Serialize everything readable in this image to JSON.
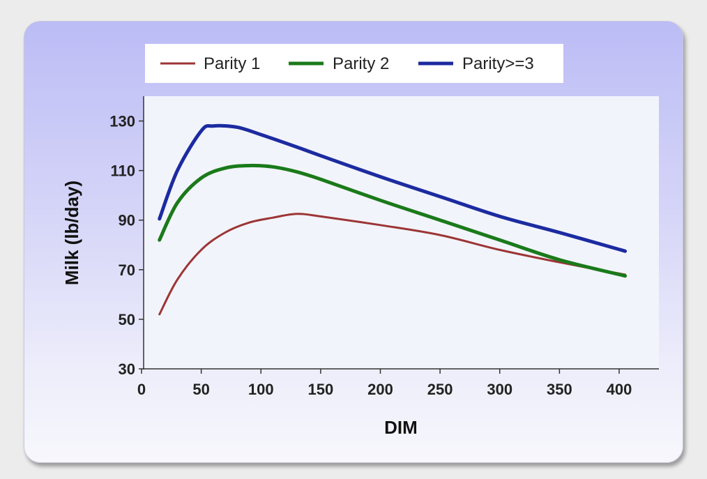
{
  "chart_data": {
    "type": "line",
    "title": "",
    "xlabel": "DIM",
    "ylabel": "Milk (lb/day)",
    "xlim": [
      0,
      435
    ],
    "ylim": [
      30,
      140
    ],
    "xticks": [
      0,
      50,
      100,
      150,
      200,
      250,
      300,
      350,
      400
    ],
    "yticks": [
      30,
      50,
      70,
      90,
      110,
      130
    ],
    "legend_position": "top",
    "grid": false,
    "series": [
      {
        "name": "Parity 1",
        "color": "#9c3535",
        "x": [
          15,
          30,
          50,
          70,
          90,
          110,
          130,
          150,
          200,
          250,
          300,
          350,
          405
        ],
        "y": [
          52,
          66,
          78,
          85,
          89,
          91,
          92.5,
          91.5,
          88,
          84,
          78,
          73,
          68
        ]
      },
      {
        "name": "Parity 2",
        "color": "#1a7a1a",
        "x": [
          15,
          30,
          50,
          70,
          90,
          110,
          130,
          150,
          200,
          250,
          300,
          350,
          405
        ],
        "y": [
          82,
          97,
          107,
          111,
          112,
          111.5,
          109.5,
          106.5,
          98,
          90,
          82,
          74,
          67.5
        ]
      },
      {
        "name": "Parity>=3",
        "color": "#1c2ba0",
        "x": [
          15,
          30,
          50,
          60,
          80,
          100,
          130,
          150,
          200,
          250,
          300,
          350,
          405
        ],
        "y": [
          90.5,
          110,
          126,
          128,
          127.5,
          124.5,
          119.5,
          116,
          107.5,
          99.5,
          91.5,
          85,
          77.5
        ]
      }
    ]
  }
}
